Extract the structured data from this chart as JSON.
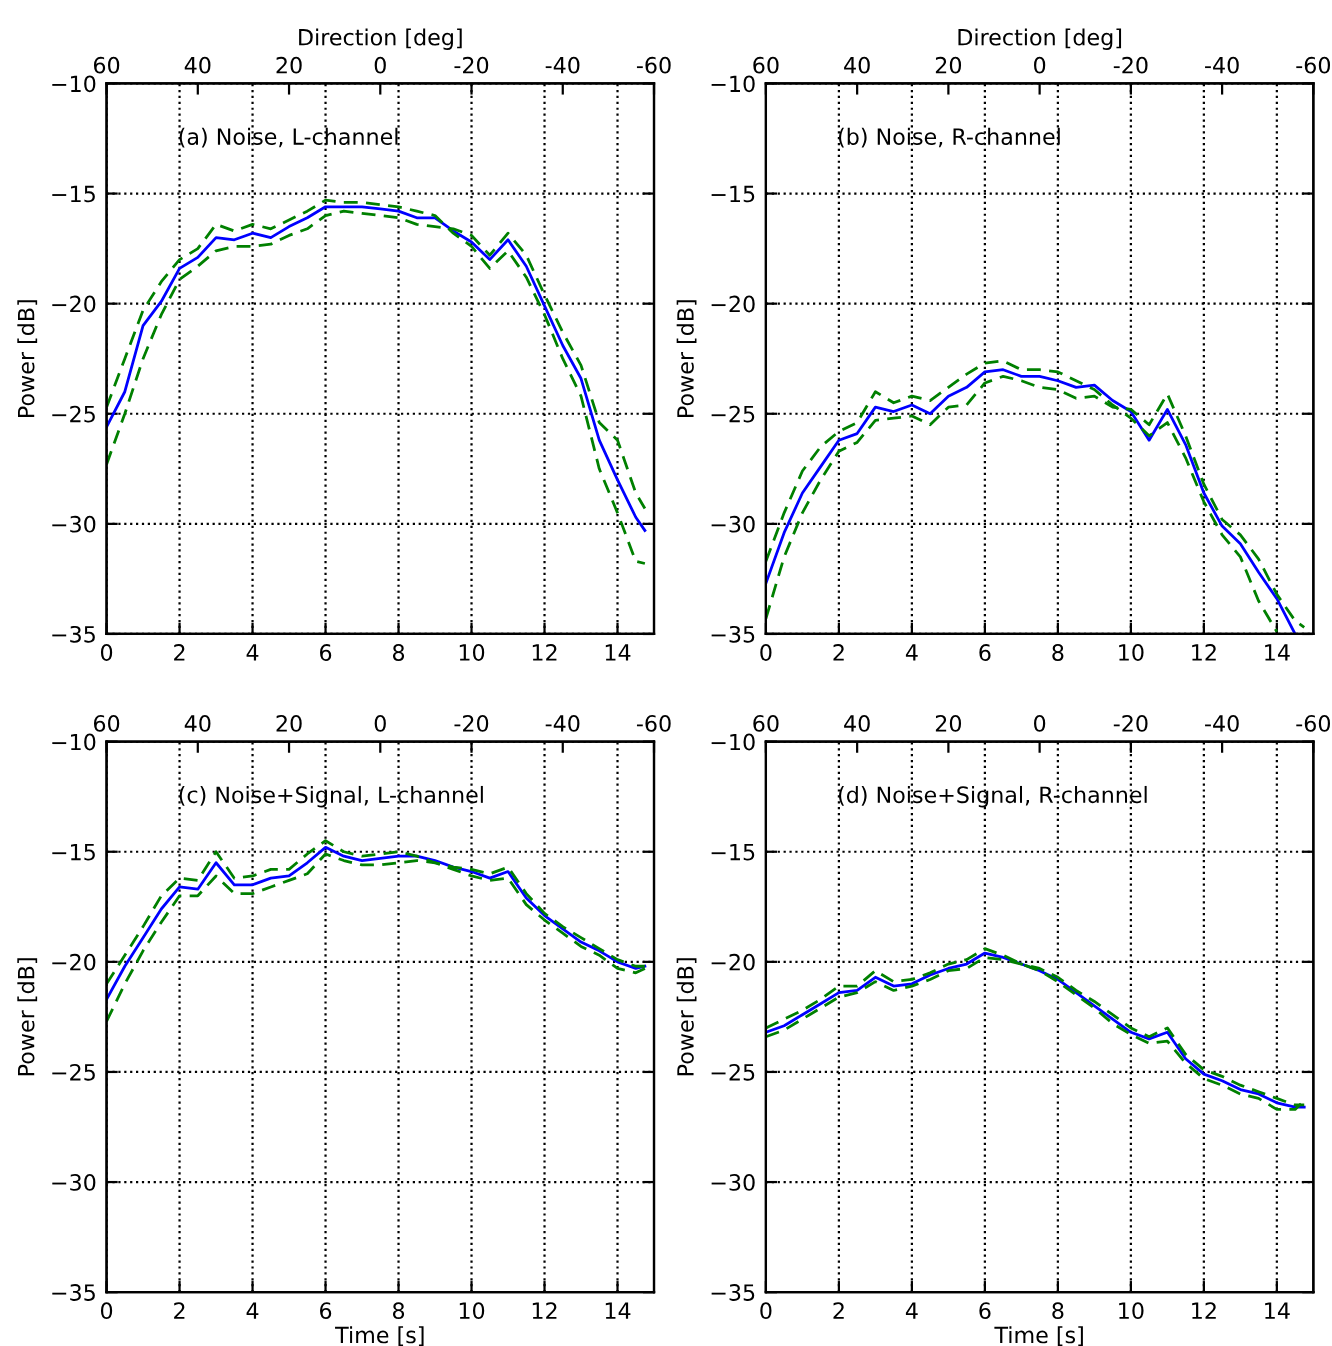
{
  "chart_data": [
    {
      "type": "line",
      "x2label": "Direction [deg]",
      "ylabel": "Power [dB]",
      "annotations": [
        "(a) Noise, L-channel"
      ],
      "x": [
        0,
        0.5,
        1,
        1.5,
        2,
        2.5,
        3,
        3.5,
        4,
        4.5,
        5,
        5.5,
        6,
        6.5,
        7,
        7.5,
        8,
        8.5,
        9,
        9.5,
        10,
        10.5,
        11,
        11.5,
        12,
        12.5,
        13,
        13.5,
        14,
        14.5,
        14.75
      ],
      "series": [
        {
          "color": "#0000ff",
          "line_style": "solid",
          "values": [
            -25.6,
            -24,
            -21,
            -19.9,
            -18.4,
            -17.9,
            -17,
            -17.1,
            -16.8,
            -17,
            -16.5,
            -16.1,
            -15.6,
            -15.6,
            -15.6,
            -15.7,
            -15.8,
            -16.1,
            -16.1,
            -16.7,
            -17.2,
            -18,
            -17.1,
            -18.3,
            -20.1,
            -21.9,
            -23.4,
            -26.2,
            -28,
            -29.7,
            -30.3
          ]
        },
        {
          "color": "#008000",
          "line_style": "dashed",
          "values": [
            -24.7,
            -22.5,
            -20.3,
            -19,
            -18,
            -17.5,
            -16.4,
            -16.7,
            -16.4,
            -16.6,
            -16.2,
            -15.8,
            -15.3,
            -15.4,
            -15.4,
            -15.5,
            -15.6,
            -15.8,
            -16,
            -16.8,
            -17.4,
            -18.4,
            -17.6,
            -18.8,
            -20.5,
            -22.5,
            -24.2,
            -27.5,
            -29.5,
            -31.7,
            -31.8
          ]
        },
        {
          "color": "#008000",
          "line_style": "dashed",
          "values": [
            -27.3,
            -25,
            -22.5,
            -20.5,
            -18.9,
            -18.3,
            -17.6,
            -17.4,
            -17.4,
            -17.3,
            -16.9,
            -16.6,
            -16,
            -15.8,
            -15.9,
            -16,
            -16.1,
            -16.4,
            -16.5,
            -16.6,
            -16.9,
            -17.8,
            -16.8,
            -17.8,
            -19.6,
            -21.3,
            -22.8,
            -25.4,
            -26.2,
            -28.6,
            -29.3
          ]
        }
      ],
      "xlim": [
        0,
        15
      ],
      "xticks": [
        0,
        2,
        4,
        6,
        8,
        10,
        12,
        14
      ],
      "ylim": [
        -35,
        -10
      ],
      "yticks": [
        -35,
        -30,
        -25,
        -20,
        -15,
        -10
      ],
      "x2lim": [
        60,
        -60
      ],
      "x2ticks": [
        60,
        40,
        20,
        0,
        -20,
        -40,
        -60
      ],
      "grid": true
    },
    {
      "type": "line",
      "x2label": "Direction [deg]",
      "ylabel": "Power [dB]",
      "annotations": [
        "(b) Noise, R-channel"
      ],
      "x": [
        0,
        0.5,
        1,
        1.5,
        2,
        2.5,
        3,
        3.5,
        4,
        4.5,
        5,
        5.5,
        6,
        6.5,
        7,
        7.5,
        8,
        8.5,
        9,
        9.5,
        10,
        10.5,
        11,
        11.5,
        12,
        12.5,
        13,
        13.5,
        14,
        14.5,
        14.75
      ],
      "series": [
        {
          "color": "#0000ff",
          "line_style": "solid",
          "values": [
            -32.7,
            -30.4,
            -28.6,
            -27.4,
            -26.2,
            -25.9,
            -24.7,
            -24.9,
            -24.6,
            -25,
            -24.2,
            -23.8,
            -23.1,
            -23,
            -23.3,
            -23.3,
            -23.5,
            -23.8,
            -23.7,
            -24.4,
            -24.9,
            -26.2,
            -24.8,
            -26.4,
            -28.6,
            -30.1,
            -30.9,
            -32.2,
            -33.4,
            -35,
            null
          ]
        },
        {
          "color": "#008000",
          "line_style": "dashed",
          "values": [
            -31.7,
            -29.5,
            -27.6,
            -26.5,
            -25.8,
            -25.4,
            -24,
            -24.5,
            -24.2,
            -24.4,
            -23.8,
            -23.2,
            -22.7,
            -22.6,
            -23,
            -23,
            -23.1,
            -23.5,
            -23.9,
            -24.6,
            -25.2,
            -26,
            -25.4,
            -27,
            -29,
            -30.5,
            -31.5,
            -33.5,
            -34.9,
            null,
            null
          ]
        },
        {
          "color": "#008000",
          "line_style": "dashed",
          "values": [
            -34.3,
            -31.5,
            -29.5,
            -28,
            -26.7,
            -26.3,
            -25.3,
            -25.2,
            -25.1,
            -25.5,
            -24.7,
            -24.6,
            -23.6,
            -23.3,
            -23.5,
            -23.8,
            -23.9,
            -24.3,
            -24.2,
            -24.7,
            -24.8,
            -25.5,
            -24.1,
            -26,
            -28.2,
            -29.8,
            -30.5,
            -31.6,
            -33.2,
            -34.4,
            -34.7
          ]
        }
      ],
      "xlim": [
        0,
        15
      ],
      "xticks": [
        0,
        2,
        4,
        6,
        8,
        10,
        12,
        14
      ],
      "ylim": [
        -35,
        -10
      ],
      "yticks": [
        -35,
        -30,
        -25,
        -20,
        -15,
        -10
      ],
      "x2lim": [
        60,
        -60
      ],
      "x2ticks": [
        60,
        40,
        20,
        0,
        -20,
        -40,
        -60
      ],
      "grid": true
    },
    {
      "type": "line",
      "xlabel": "Time [s]",
      "ylabel": "Power [dB]",
      "annotations": [
        "(c) Noise+Signal, L-channel"
      ],
      "x": [
        0,
        0.5,
        1,
        1.5,
        2,
        2.5,
        3,
        3.5,
        4,
        4.5,
        5,
        5.5,
        6,
        6.5,
        7,
        7.5,
        8,
        8.5,
        9,
        9.5,
        10,
        10.5,
        11,
        11.5,
        12,
        12.5,
        13,
        13.5,
        14,
        14.5,
        14.75
      ],
      "series": [
        {
          "color": "#0000ff",
          "line_style": "solid",
          "values": [
            -21.7,
            -20.2,
            -18.9,
            -17.6,
            -16.6,
            -16.7,
            -15.5,
            -16.5,
            -16.5,
            -16.2,
            -16.1,
            -15.5,
            -14.8,
            -15.2,
            -15.4,
            -15.3,
            -15.2,
            -15.2,
            -15.4,
            -15.7,
            -15.9,
            -16.2,
            -15.9,
            -17.1,
            -17.9,
            -18.5,
            -19.1,
            -19.5,
            -20,
            -20.3,
            -20.2
          ]
        },
        {
          "color": "#008000",
          "line_style": "dashed",
          "values": [
            -21,
            -19.7,
            -18.4,
            -17,
            -16.2,
            -16.3,
            -15,
            -16.2,
            -16.1,
            -15.8,
            -15.8,
            -15.1,
            -14.5,
            -15,
            -15.2,
            -15.1,
            -15,
            -15.2,
            -15.5,
            -15.8,
            -16.1,
            -16.3,
            -16.2,
            -17.4,
            -18.1,
            -18.7,
            -19.3,
            -19.7,
            -20.3,
            -20.5,
            -20.3
          ]
        },
        {
          "color": "#008000",
          "line_style": "dashed",
          "values": [
            -22.7,
            -21,
            -19.5,
            -18.2,
            -17,
            -17,
            -16.1,
            -16.9,
            -16.9,
            -16.6,
            -16.3,
            -16,
            -15.1,
            -15.4,
            -15.6,
            -15.6,
            -15.5,
            -15.4,
            -15.5,
            -15.7,
            -15.8,
            -16,
            -15.7,
            -16.9,
            -17.8,
            -18.4,
            -18.9,
            -19.4,
            -19.9,
            -20.2,
            -20.2
          ]
        }
      ],
      "xlim": [
        0,
        15
      ],
      "xticks": [
        0,
        2,
        4,
        6,
        8,
        10,
        12,
        14
      ],
      "ylim": [
        -35,
        -10
      ],
      "yticks": [
        -35,
        -30,
        -25,
        -20,
        -15,
        -10
      ],
      "x2lim": [
        60,
        -60
      ],
      "x2ticks": [
        60,
        40,
        20,
        0,
        -20,
        -40,
        -60
      ],
      "grid": true
    },
    {
      "type": "line",
      "xlabel": "Time [s]",
      "ylabel": "Power [dB]",
      "annotations": [
        "(d) Noise+Signal, R-channel"
      ],
      "x": [
        0,
        0.5,
        1,
        1.5,
        2,
        2.5,
        3,
        3.5,
        4,
        4.5,
        5,
        5.5,
        6,
        6.5,
        7,
        7.5,
        8,
        8.5,
        9,
        9.5,
        10,
        10.5,
        11,
        11.5,
        12,
        12.5,
        13,
        13.5,
        14,
        14.5,
        14.75
      ],
      "series": [
        {
          "color": "#0000ff",
          "line_style": "solid",
          "values": [
            -23.2,
            -22.9,
            -22.4,
            -21.9,
            -21.4,
            -21.3,
            -20.7,
            -21.1,
            -21,
            -20.6,
            -20.3,
            -20.1,
            -19.6,
            -19.8,
            -20.1,
            -20.4,
            -20.8,
            -21.4,
            -22,
            -22.6,
            -23.2,
            -23.5,
            -23.2,
            -24.4,
            -25.1,
            -25.4,
            -25.8,
            -26,
            -26.4,
            -26.6,
            -26.6
          ]
        },
        {
          "color": "#008000",
          "line_style": "dashed",
          "values": [
            -23,
            -22.6,
            -22.2,
            -21.7,
            -21.1,
            -21.1,
            -20.4,
            -20.9,
            -20.8,
            -20.5,
            -20.1,
            -19.9,
            -19.4,
            -19.7,
            -20.1,
            -20.4,
            -20.9,
            -21.5,
            -22.1,
            -22.8,
            -23.3,
            -23.7,
            -23.6,
            -24.6,
            -25.3,
            -25.6,
            -26,
            -26.2,
            -26.7,
            -26.7,
            -26.3
          ]
        },
        {
          "color": "#008000",
          "line_style": "dashed",
          "values": [
            -23.4,
            -23.1,
            -22.6,
            -22.1,
            -21.6,
            -21.4,
            -20.9,
            -21.3,
            -21.1,
            -20.8,
            -20.4,
            -20.3,
            -19.8,
            -19.9,
            -20.1,
            -20.3,
            -20.7,
            -21.3,
            -21.8,
            -22.4,
            -23,
            -23.4,
            -23,
            -24.2,
            -24.9,
            -25.2,
            -25.6,
            -25.9,
            -26.2,
            -26.5,
            -26.5
          ]
        }
      ],
      "xlim": [
        0,
        15
      ],
      "xticks": [
        0,
        2,
        4,
        6,
        8,
        10,
        12,
        14
      ],
      "ylim": [
        -35,
        -10
      ],
      "yticks": [
        -35,
        -30,
        -25,
        -20,
        -15,
        -10
      ],
      "x2lim": [
        60,
        -60
      ],
      "x2ticks": [
        60,
        40,
        20,
        0,
        -20,
        -40,
        -60
      ],
      "grid": true
    }
  ]
}
